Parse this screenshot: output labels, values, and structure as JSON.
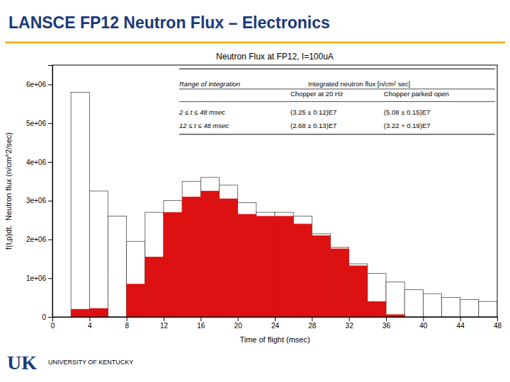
{
  "chart_data": {
    "type": "histogram",
    "title": "LANSCE FP12 Neutron Flux – Electronics",
    "subtitle": "Neutron Flux at FP12, I=100uA",
    "xlabel": "Time of flight (msec)",
    "ylabel": "f(t,p)dt.  Neutron flux (n/cm^2/sec)",
    "bins": [
      2,
      4,
      6,
      8,
      10,
      12,
      14,
      16,
      18,
      20,
      22,
      24,
      26,
      28,
      30,
      32,
      34,
      36,
      38,
      40,
      42,
      44,
      46,
      48
    ],
    "series": [
      {
        "color": "#ffffff",
        "values": [
          5800000,
          3250000,
          2600000,
          1950000,
          2700000,
          3000000,
          3500000,
          3600000,
          3400000,
          2950000,
          2700000,
          2700000,
          2600000,
          2150000,
          1800000,
          1370000,
          1120000,
          900000,
          700000,
          600000,
          500000,
          450000,
          400000
        ]
      },
      {
        "color": "#dd1111",
        "values": [
          200000,
          220000,
          0,
          850000,
          1550000,
          2700000,
          3100000,
          3250000,
          3050000,
          2650000,
          2600000,
          2600000,
          2400000,
          2100000,
          1760000,
          1320000,
          400000,
          60000,
          0,
          0,
          0,
          0,
          0
        ]
      }
    ],
    "xlim": [
      0,
      48
    ],
    "ylim": [
      0,
      6500000
    ],
    "xticks": [
      0,
      4,
      8,
      12,
      16,
      20,
      24,
      28,
      32,
      36,
      40,
      44,
      48
    ],
    "yticks": [
      0,
      {
        "value": 1000000,
        "label": "1e+06"
      },
      {
        "value": 2000000,
        "label": "2e+06"
      },
      {
        "value": 3000000,
        "label": "3e+06"
      },
      {
        "value": 4000000,
        "label": "4e+06"
      },
      {
        "value": 5000000,
        "label": "5e+06"
      },
      {
        "value": 6000000,
        "label": "6e+06"
      }
    ],
    "annotations": [
      "Range of Integration",
      "Integrated neutron flux [n/cm² sec]",
      "Chopper at 20 Hz",
      "Chopper parked open",
      "2 ≤ t ≤ 48 msec",
      "(3.25 ± 0.12)E7",
      "(5.08 ± 0.15)E7",
      "12 ≤ t ≤ 48 msec",
      "(2.68 ± 0.13)E7",
      "(3.22 + 0.19)E7",
      "UK",
      "UNIVERSITY OF KENTUCKY"
    ]
  }
}
